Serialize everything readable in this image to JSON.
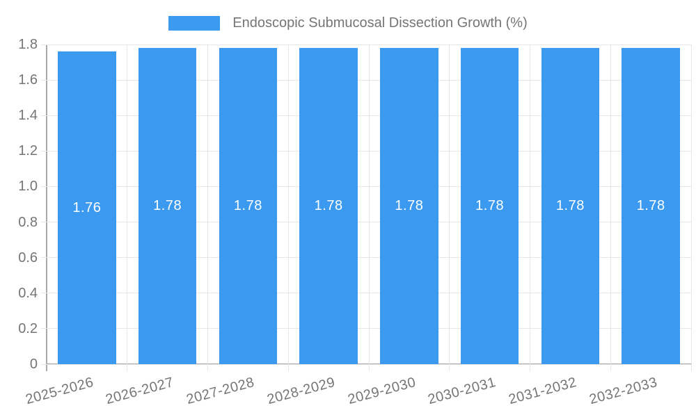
{
  "chart_data": {
    "type": "bar",
    "series_name": "Endoscopic Submucosal Dissection Growth (%)",
    "legend_position": "top",
    "categories": [
      "2025-2026",
      "2026-2027",
      "2027-2028",
      "2028-2029",
      "2029-2030",
      "2030-2031",
      "2031-2032",
      "2032-2033"
    ],
    "values": [
      1.76,
      1.78,
      1.78,
      1.78,
      1.78,
      1.78,
      1.78,
      1.78
    ],
    "value_labels": [
      "1.76",
      "1.78",
      "1.78",
      "1.78",
      "1.78",
      "1.78",
      "1.78",
      "1.78"
    ],
    "xlabel": "",
    "ylabel": "",
    "ylim": [
      0,
      1.8
    ],
    "grid": true,
    "y_ticks": [
      {
        "label": "0",
        "value": 0
      },
      {
        "label": "0.2",
        "value": 0.2
      },
      {
        "label": "0.4",
        "value": 0.4
      },
      {
        "label": "0.6",
        "value": 0.6
      },
      {
        "label": "0.8",
        "value": 0.8
      },
      {
        "label": "1.0",
        "value": 1.0
      },
      {
        "label": "1.2",
        "value": 1.2
      },
      {
        "label": "1.4",
        "value": 1.4
      },
      {
        "label": "1.6",
        "value": 1.6
      },
      {
        "label": "1.8",
        "value": 1.8
      }
    ],
    "colors": {
      "bar": "#3B9AF0",
      "grid": "#E6E6E6",
      "axis": "#A9A9A9",
      "tick_text": "#757575",
      "value_text": "#FFFFFF"
    }
  }
}
